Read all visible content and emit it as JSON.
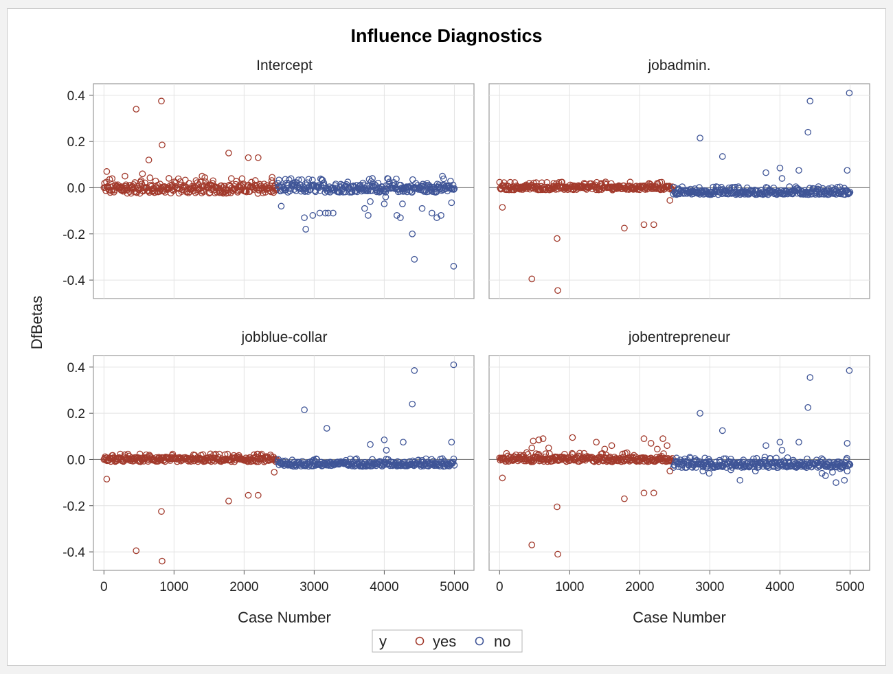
{
  "chart_data": {
    "type": "scatter",
    "title": "Influence Diagnostics",
    "ylabel": "DfBetas",
    "xlabel": "Case Number",
    "xlim": [
      -150,
      5280
    ],
    "ylim": [
      -0.48,
      0.45
    ],
    "xticks": [
      0,
      1000,
      2000,
      3000,
      4000,
      5000
    ],
    "yticks": [
      -0.4,
      -0.2,
      0.0,
      0.2,
      0.4
    ],
    "xtick_labels": [
      "0",
      "1000",
      "2000",
      "3000",
      "4000",
      "5000"
    ],
    "ytick_labels": [
      "-0.4",
      "-0.2",
      "0.0",
      "0.2",
      "0.4"
    ],
    "grid": true,
    "legend": {
      "title": "y",
      "position": "bottom-center",
      "entries": [
        {
          "label": "yes",
          "color": "#a23a2c"
        },
        {
          "label": "no",
          "color": "#3f5597"
        }
      ]
    },
    "colors": {
      "yes": "#a23a2c",
      "no": "#3f5597"
    },
    "panels": [
      {
        "title": "Intercept",
        "yes_band": [
          -0.025,
          0.045
        ],
        "no_band": [
          -0.02,
          0.04
        ],
        "yes_outliers": [
          [
            40,
            0.07
          ],
          [
            460,
            0.34
          ],
          [
            640,
            0.12
          ],
          [
            820,
            0.375
          ],
          [
            830,
            0.185
          ],
          [
            1780,
            0.15
          ],
          [
            2060,
            0.13
          ],
          [
            2200,
            0.13
          ],
          [
            300,
            0.05
          ],
          [
            550,
            0.06
          ],
          [
            1400,
            0.05
          ],
          [
            2400,
            0.045
          ]
        ],
        "no_outliers": [
          [
            2530,
            -0.08
          ],
          [
            2860,
            -0.13
          ],
          [
            2880,
            -0.18
          ],
          [
            2980,
            -0.12
          ],
          [
            3080,
            -0.11
          ],
          [
            3160,
            -0.11
          ],
          [
            3200,
            -0.11
          ],
          [
            3270,
            -0.11
          ],
          [
            3720,
            -0.09
          ],
          [
            3770,
            -0.12
          ],
          [
            3800,
            -0.06
          ],
          [
            4000,
            -0.07
          ],
          [
            4020,
            -0.04
          ],
          [
            4180,
            -0.12
          ],
          [
            4230,
            -0.13
          ],
          [
            4260,
            -0.07
          ],
          [
            4400,
            -0.2
          ],
          [
            4430,
            -0.31
          ],
          [
            4540,
            -0.09
          ],
          [
            4680,
            -0.11
          ],
          [
            4750,
            -0.13
          ],
          [
            4810,
            -0.12
          ],
          [
            4960,
            -0.065
          ],
          [
            4990,
            -0.34
          ],
          [
            4830,
            0.05
          ],
          [
            3830,
            0.04
          ]
        ]
      },
      {
        "title": "jobadmin.",
        "yes_band": [
          -0.01,
          0.025
        ],
        "no_band": [
          -0.03,
          0.005
        ],
        "yes_outliers": [
          [
            40,
            -0.085
          ],
          [
            460,
            -0.395
          ],
          [
            820,
            -0.22
          ],
          [
            830,
            -0.445
          ],
          [
            1780,
            -0.175
          ],
          [
            2060,
            -0.16
          ],
          [
            2200,
            -0.16
          ],
          [
            2430,
            -0.055
          ]
        ],
        "no_outliers": [
          [
            2860,
            0.215
          ],
          [
            3180,
            0.135
          ],
          [
            3800,
            0.065
          ],
          [
            4000,
            0.085
          ],
          [
            4030,
            0.04
          ],
          [
            4270,
            0.075
          ],
          [
            4400,
            0.24
          ],
          [
            4430,
            0.375
          ],
          [
            4960,
            0.075
          ],
          [
            4990,
            0.41
          ]
        ]
      },
      {
        "title": "jobblue-collar",
        "yes_band": [
          -0.01,
          0.025
        ],
        "no_band": [
          -0.03,
          0.005
        ],
        "yes_outliers": [
          [
            40,
            -0.085
          ],
          [
            460,
            -0.395
          ],
          [
            820,
            -0.225
          ],
          [
            830,
            -0.44
          ],
          [
            1780,
            -0.18
          ],
          [
            2060,
            -0.155
          ],
          [
            2200,
            -0.155
          ],
          [
            2430,
            -0.055
          ]
        ],
        "no_outliers": [
          [
            2860,
            0.215
          ],
          [
            3180,
            0.135
          ],
          [
            3800,
            0.065
          ],
          [
            4000,
            0.085
          ],
          [
            4030,
            0.04
          ],
          [
            4270,
            0.075
          ],
          [
            4400,
            0.24
          ],
          [
            4430,
            0.385
          ],
          [
            4960,
            0.075
          ],
          [
            4990,
            0.41
          ]
        ]
      },
      {
        "title": "jobentrepreneur",
        "yes_band": [
          -0.01,
          0.03
        ],
        "no_band": [
          -0.035,
          0.01
        ],
        "yes_outliers": [
          [
            40,
            -0.08
          ],
          [
            460,
            -0.37
          ],
          [
            820,
            -0.205
          ],
          [
            830,
            -0.41
          ],
          [
            1780,
            -0.17
          ],
          [
            2060,
            -0.145
          ],
          [
            2200,
            -0.145
          ],
          [
            2430,
            -0.05
          ],
          [
            460,
            0.05
          ],
          [
            480,
            0.08
          ],
          [
            560,
            0.085
          ],
          [
            620,
            0.09
          ],
          [
            1040,
            0.095
          ],
          [
            1380,
            0.075
          ],
          [
            1600,
            0.06
          ],
          [
            2060,
            0.09
          ],
          [
            2160,
            0.07
          ],
          [
            2330,
            0.09
          ],
          [
            2390,
            0.06
          ],
          [
            700,
            0.05
          ],
          [
            1500,
            0.045
          ],
          [
            2250,
            0.045
          ]
        ],
        "no_outliers": [
          [
            2860,
            0.2
          ],
          [
            3180,
            0.125
          ],
          [
            3800,
            0.06
          ],
          [
            4000,
            0.075
          ],
          [
            4030,
            0.04
          ],
          [
            4270,
            0.075
          ],
          [
            4400,
            0.225
          ],
          [
            4430,
            0.355
          ],
          [
            4960,
            0.07
          ],
          [
            4990,
            0.385
          ],
          [
            2900,
            -0.05
          ],
          [
            2990,
            -0.06
          ],
          [
            3300,
            -0.045
          ],
          [
            3430,
            -0.09
          ],
          [
            3650,
            -0.05
          ],
          [
            4600,
            -0.06
          ],
          [
            4650,
            -0.07
          ],
          [
            4750,
            -0.055
          ],
          [
            4800,
            -0.1
          ],
          [
            4920,
            -0.09
          ],
          [
            4960,
            -0.05
          ],
          [
            4860,
            -0.04
          ]
        ]
      }
    ]
  }
}
